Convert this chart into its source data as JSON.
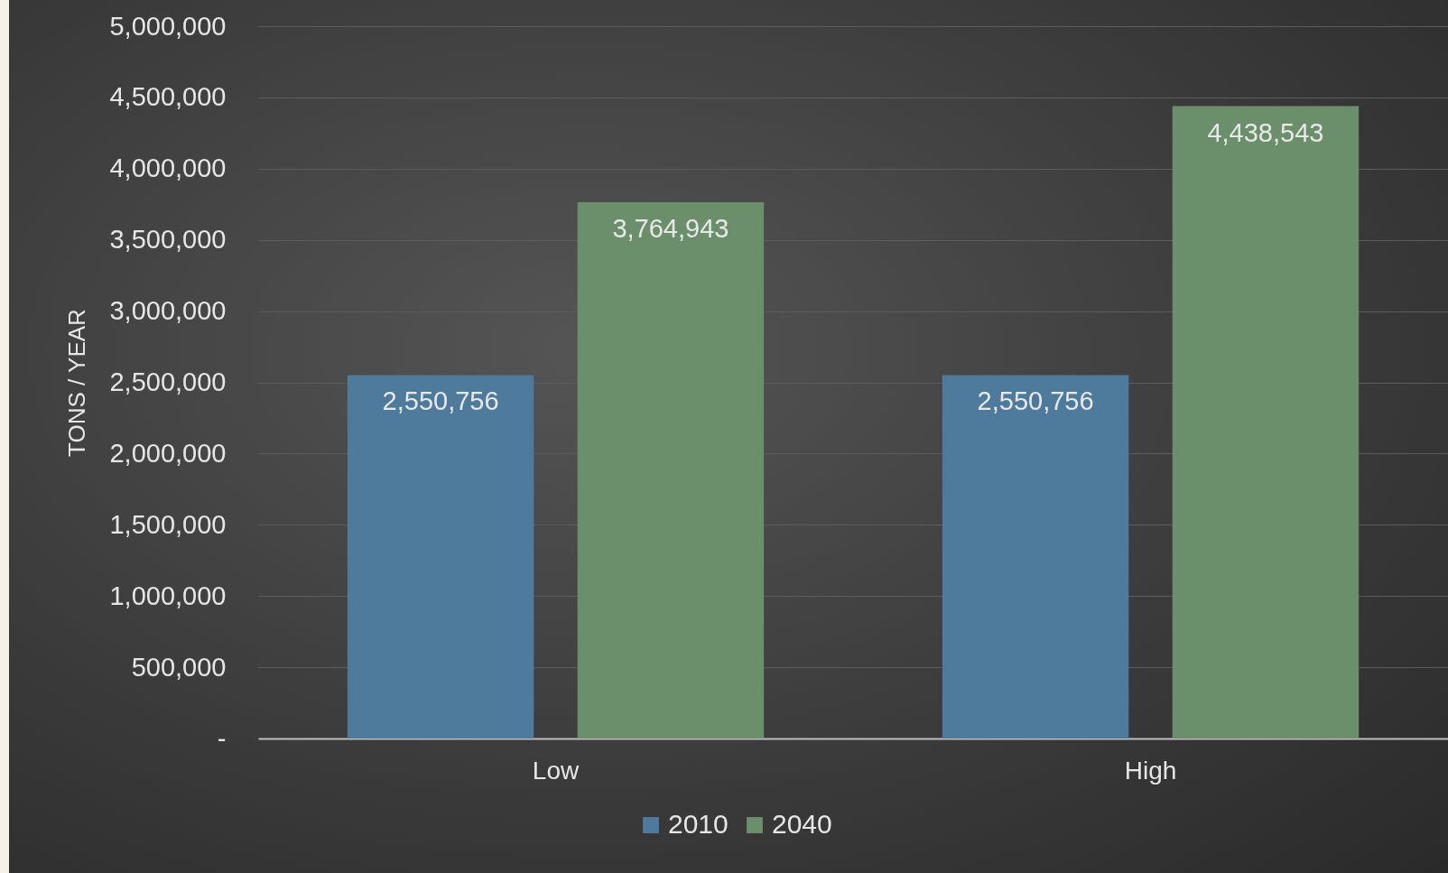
{
  "chart_data": {
    "type": "bar",
    "ylabel": "TONS / YEAR",
    "categories": [
      "Low",
      "High"
    ],
    "series": [
      {
        "name": "2010",
        "color": "#4e7b9b",
        "values": [
          2550756,
          2550756
        ],
        "value_labels": [
          "2,550,756",
          "2,550,756"
        ]
      },
      {
        "name": "2040",
        "color": "#6a8f6a",
        "values": [
          3764943,
          4438543
        ],
        "value_labels": [
          "3,764,943",
          "4,438,543"
        ]
      }
    ],
    "ylim": [
      0,
      5000000
    ],
    "yticks": [
      {
        "value": 0,
        "label": "-"
      },
      {
        "value": 500000,
        "label": "500,000"
      },
      {
        "value": 1000000,
        "label": "1,000,000"
      },
      {
        "value": 1500000,
        "label": "1,500,000"
      },
      {
        "value": 2000000,
        "label": "2,000,000"
      },
      {
        "value": 2500000,
        "label": "2,500,000"
      },
      {
        "value": 3000000,
        "label": "3,000,000"
      },
      {
        "value": 3500000,
        "label": "3,500,000"
      },
      {
        "value": 4000000,
        "label": "4,000,000"
      },
      {
        "value": 4500000,
        "label": "4,500,000"
      },
      {
        "value": 5000000,
        "label": "5,000,000"
      }
    ],
    "grid": "y",
    "legend": "bottom"
  }
}
